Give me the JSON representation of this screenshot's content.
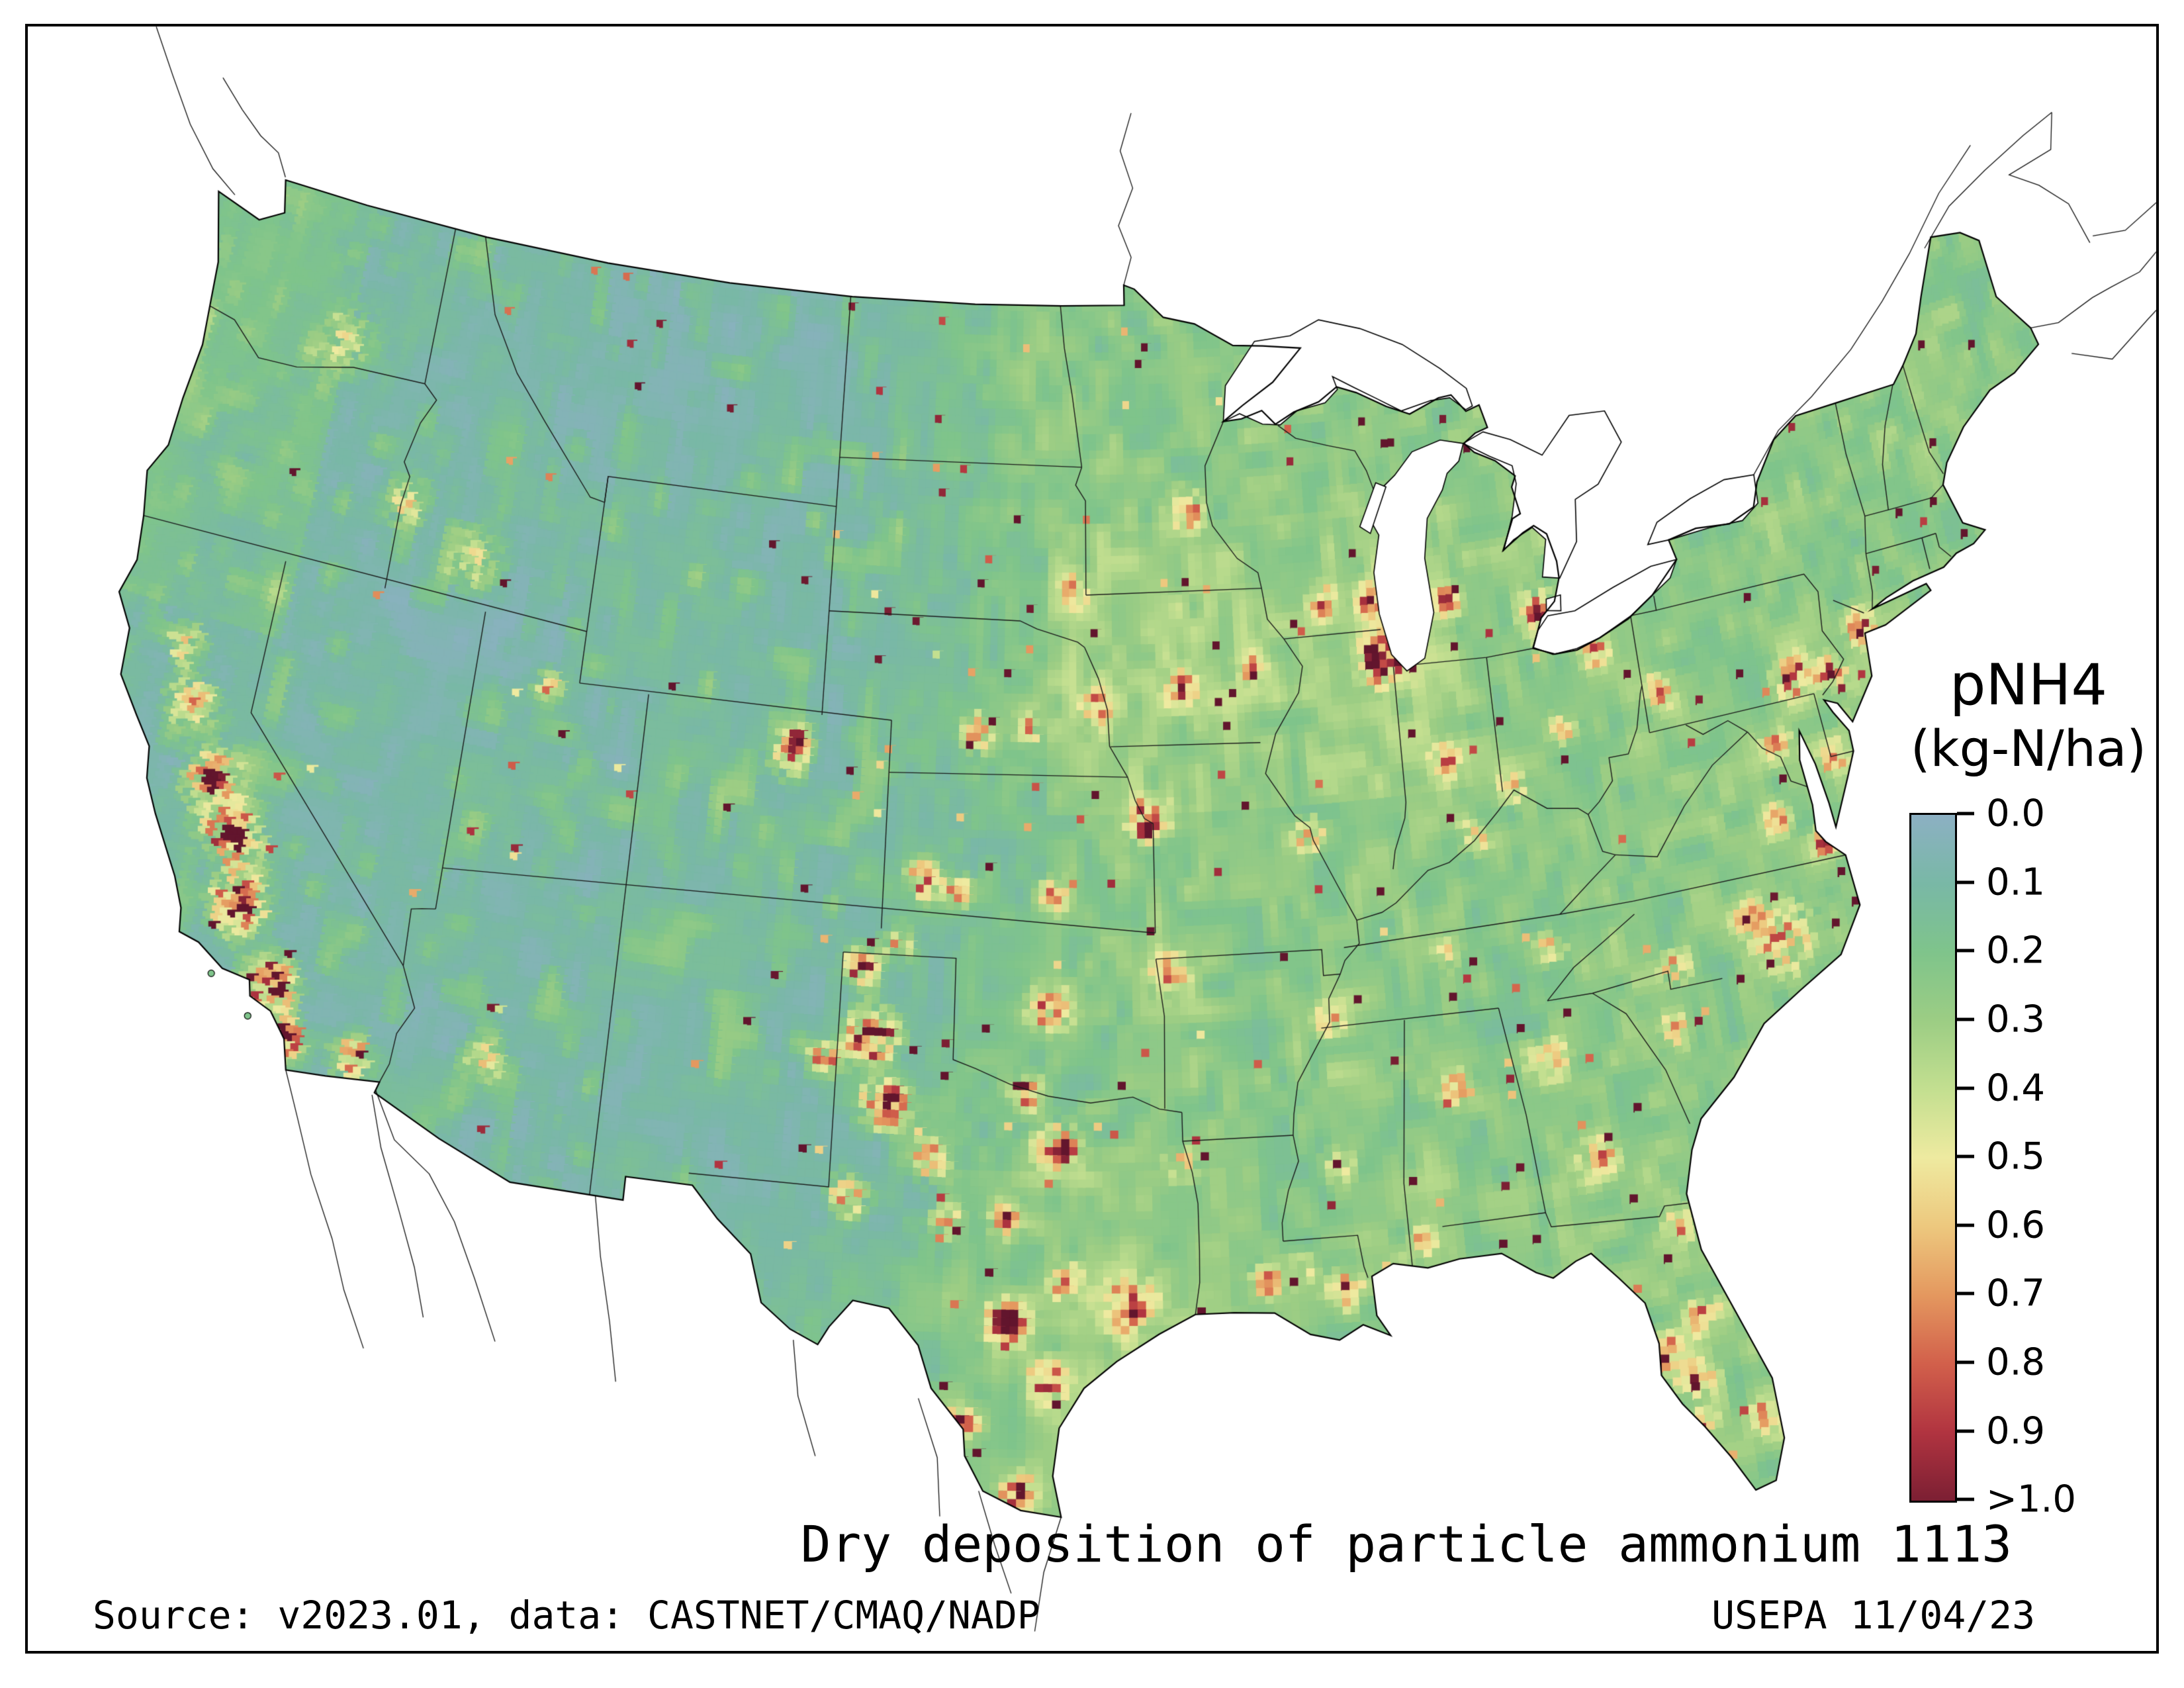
{
  "figure": {
    "map_title": "Dry deposition of particle ammonium 1113",
    "source_note": "Source: v2023.01, data: CASTNET/CMAQ/NADP",
    "agency_note": "USEPA 11/04/23"
  },
  "legend": {
    "variable": "pNH4",
    "units": "(kg-N/ha)",
    "tick_labels": [
      "0.0",
      "0.1",
      "0.2",
      "0.3",
      "0.4",
      "0.5",
      "0.6",
      "0.7",
      "0.8",
      "0.9",
      ">1.0"
    ],
    "colorbar_colors": [
      "#8cb0c3",
      "#79b8a6",
      "#7fc48b",
      "#9ccd84",
      "#c3df90",
      "#eeeaa0",
      "#edc87e",
      "#e4985f",
      "#d2604b",
      "#b13440",
      "#7c1f33"
    ]
  },
  "map": {
    "background_color": "#ffffff",
    "outline_color": "#000000"
  }
}
